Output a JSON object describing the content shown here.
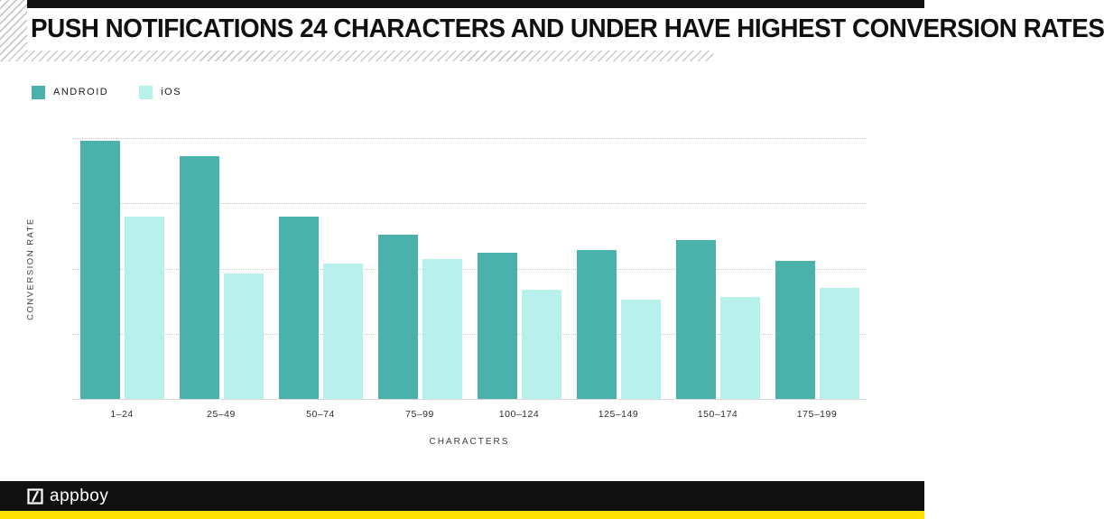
{
  "header": {
    "title": "PUSH NOTIFICATIONS 24 CHARACTERS AND UNDER HAVE HIGHEST CONVERSION RATES"
  },
  "chart_data": {
    "type": "bar",
    "title": "PUSH NOTIFICATIONS 24 CHARACTERS AND UNDER HAVE HIGHEST CONVERSION RATES",
    "categories": [
      "1–24",
      "25–49",
      "50–74",
      "75–99",
      "100–124",
      "125–149",
      "150–174",
      "175–199"
    ],
    "series": [
      {
        "name": "ANDROID",
        "color": "#4ab2ab",
        "values": [
          99,
          93,
          70,
          63,
          56,
          57,
          61,
          53
        ]
      },
      {
        "name": "iOS",
        "color": "#b8f1ec",
        "values": [
          70,
          48,
          52,
          53.5,
          42,
          38,
          39,
          42.5
        ]
      }
    ],
    "xlabel": "CHARACTERS",
    "ylabel": "CONVERSION RATE",
    "ylim": [
      0,
      100
    ],
    "y_tick_labels": [],
    "grid": "horizontal-dotted",
    "legend_position": "top-left"
  },
  "footer": {
    "brand": "appboy",
    "accent_color": "#ffe000",
    "bar_color": "#111111"
  }
}
